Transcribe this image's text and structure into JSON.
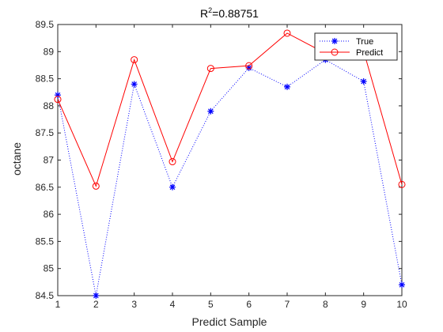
{
  "chart_data": {
    "type": "line",
    "title_main": "R",
    "title_sup": "2",
    "title_rest": "=0.88751",
    "xlabel": "Predict Sample",
    "ylabel": "octane",
    "xlim": [
      1,
      10
    ],
    "ylim": [
      84.5,
      89.5
    ],
    "xticks": [
      1,
      2,
      3,
      4,
      5,
      6,
      7,
      8,
      9,
      10
    ],
    "yticks": [
      "84.5",
      "85",
      "85.5",
      "86",
      "86.5",
      "87",
      "87.5",
      "88",
      "88.5",
      "89",
      "89.5"
    ],
    "grid": false,
    "legend_position": "top-right",
    "x": [
      1,
      2,
      3,
      4,
      5,
      6,
      7,
      8,
      9,
      10
    ],
    "series": [
      {
        "name": "True",
        "color": "#0000ff",
        "line_style": "dotted",
        "marker": "asterisk",
        "values": [
          88.2,
          84.5,
          88.4,
          86.5,
          87.9,
          88.7,
          88.35,
          88.85,
          88.45,
          84.7
        ]
      },
      {
        "name": "Predict",
        "color": "#ff0000",
        "line_style": "solid",
        "marker": "circle",
        "values": [
          88.12,
          86.52,
          88.85,
          86.97,
          88.69,
          88.74,
          89.34,
          88.97,
          89.01,
          86.55
        ]
      }
    ]
  }
}
